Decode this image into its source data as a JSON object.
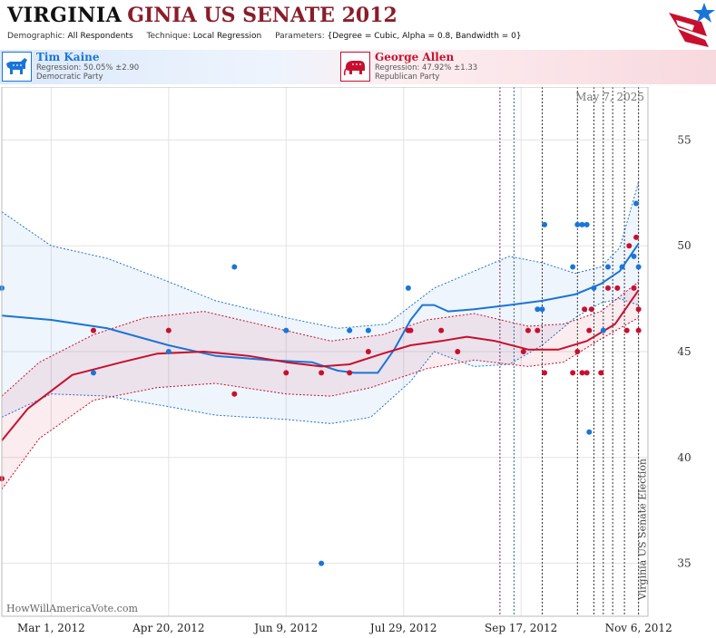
{
  "header": {
    "state": "VIRGINIA",
    "title_rest": "GINIA US SENATE 2012",
    "demographic_label": "Demographic:",
    "demographic_value": "All Respondents",
    "technique_label": "Technique:",
    "technique_value": "Local Regression",
    "parameters_label": "Parameters:",
    "parameters_value": "{Degree = Cubic, Alpha = 0.8, Bandwidth = 0}"
  },
  "candidates": [
    {
      "name": "Tim Kaine",
      "regression": "Regression: 50.05% ±2.90",
      "party": "Democratic Party",
      "color": "#1a75d8"
    },
    {
      "name": "George Allen",
      "regression": "Regression: 47.92% ±1.33",
      "party": "Republican Party",
      "color": "#c8102e"
    }
  ],
  "colors": {
    "dem": "#1a75d8",
    "rep": "#c8102e",
    "grid": "#e3e3e3",
    "event_line": "#7a1f6b"
  },
  "chart_data": {
    "type": "scatter",
    "date_label": "May 7, 2025",
    "election_label": "Virginia US Senate Election",
    "watermark": "HowWillAmericaVote.com",
    "x_ticks": [
      "Mar 1, 2012",
      "Apr 20, 2012",
      "Jun 9, 2012",
      "Jul 29, 2012",
      "Sep 17, 2012",
      "Nov 6, 2012"
    ],
    "x_range": [
      "2012-02-09",
      "2012-11-10"
    ],
    "y_ticks": [
      35,
      40,
      45,
      50,
      55
    ],
    "y_range": [
      32.5,
      57.5
    ],
    "grid": true,
    "event_dates": [
      "2012-09-08",
      "2012-09-14",
      "2012-09-26",
      "2012-10-11",
      "2012-10-18",
      "2012-10-22",
      "2012-10-26",
      "2012-10-31",
      "2012-11-06"
    ],
    "election_date": "2012-11-06",
    "series": [
      {
        "name": "Tim Kaine",
        "color": "#1a75d8",
        "points": [
          [
            "2012-02-09",
            48
          ],
          [
            "2012-03-19",
            44
          ],
          [
            "2012-04-20",
            45
          ],
          [
            "2012-05-18",
            49
          ],
          [
            "2012-06-09",
            46
          ],
          [
            "2012-06-24",
            35
          ],
          [
            "2012-07-06",
            46
          ],
          [
            "2012-07-14",
            46
          ],
          [
            "2012-07-31",
            48
          ],
          [
            "2012-09-24",
            47
          ],
          [
            "2012-09-26",
            47
          ],
          [
            "2012-09-27",
            51
          ],
          [
            "2012-10-09",
            49
          ],
          [
            "2012-10-11",
            51
          ],
          [
            "2012-10-13",
            51
          ],
          [
            "2012-10-15",
            51
          ],
          [
            "2012-10-16",
            41.2
          ],
          [
            "2012-10-18",
            48
          ],
          [
            "2012-10-22",
            46
          ],
          [
            "2012-10-24",
            49
          ],
          [
            "2012-10-30",
            49
          ],
          [
            "2012-11-04",
            49.5
          ],
          [
            "2012-11-06",
            49
          ],
          [
            "2012-11-05",
            52
          ]
        ],
        "fit": [
          [
            "2012-02-09",
            46.7
          ],
          [
            "2012-03-01",
            46.5
          ],
          [
            "2012-03-25",
            46.1
          ],
          [
            "2012-04-20",
            45.3
          ],
          [
            "2012-05-10",
            44.8
          ],
          [
            "2012-06-01",
            44.6
          ],
          [
            "2012-06-20",
            44.5
          ],
          [
            "2012-07-01",
            44.1
          ],
          [
            "2012-07-08",
            44.0
          ],
          [
            "2012-07-18",
            44.0
          ],
          [
            "2012-07-25",
            45.1
          ],
          [
            "2012-08-01",
            46.5
          ],
          [
            "2012-08-06",
            47.2
          ],
          [
            "2012-08-11",
            47.2
          ],
          [
            "2012-08-17",
            46.9
          ],
          [
            "2012-08-28",
            47.0
          ],
          [
            "2012-09-12",
            47.2
          ],
          [
            "2012-09-26",
            47.4
          ],
          [
            "2012-10-10",
            47.7
          ],
          [
            "2012-10-21",
            48.2
          ],
          [
            "2012-10-29",
            48.8
          ],
          [
            "2012-11-06",
            50.1
          ]
        ],
        "upper": [
          [
            "2012-02-09",
            51.6
          ],
          [
            "2012-03-01",
            50.0
          ],
          [
            "2012-03-25",
            49.4
          ],
          [
            "2012-04-20",
            48.3
          ],
          [
            "2012-05-10",
            47.4
          ],
          [
            "2012-06-09",
            46.6
          ],
          [
            "2012-07-01",
            46.1
          ],
          [
            "2012-07-22",
            46.3
          ],
          [
            "2012-08-11",
            48.0
          ],
          [
            "2012-08-28",
            48.8
          ],
          [
            "2012-09-12",
            49.5
          ],
          [
            "2012-09-26",
            49.2
          ],
          [
            "2012-10-10",
            48.7
          ],
          [
            "2012-10-21",
            49.0
          ],
          [
            "2012-10-29",
            49.9
          ],
          [
            "2012-11-06",
            53.0
          ]
        ],
        "lower": [
          [
            "2012-02-09",
            41.9
          ],
          [
            "2012-03-01",
            43.0
          ],
          [
            "2012-03-25",
            42.9
          ],
          [
            "2012-04-20",
            42.4
          ],
          [
            "2012-05-10",
            42.0
          ],
          [
            "2012-06-09",
            41.8
          ],
          [
            "2012-06-28",
            41.6
          ],
          [
            "2012-07-15",
            41.9
          ],
          [
            "2012-08-01",
            43.6
          ],
          [
            "2012-08-11",
            45.0
          ],
          [
            "2012-08-28",
            44.3
          ],
          [
            "2012-09-12",
            44.4
          ],
          [
            "2012-09-26",
            45.3
          ],
          [
            "2012-10-10",
            46.6
          ],
          [
            "2012-10-21",
            47.3
          ],
          [
            "2012-10-29",
            47.5
          ],
          [
            "2012-11-06",
            47.2
          ]
        ]
      },
      {
        "name": "George Allen",
        "color": "#c8102e",
        "points": [
          [
            "2012-02-09",
            39
          ],
          [
            "2012-03-19",
            46
          ],
          [
            "2012-04-20",
            46
          ],
          [
            "2012-05-18",
            43
          ],
          [
            "2012-06-09",
            44
          ],
          [
            "2012-06-24",
            44
          ],
          [
            "2012-07-06",
            44
          ],
          [
            "2012-07-14",
            45
          ],
          [
            "2012-07-31",
            46
          ],
          [
            "2012-08-01",
            46
          ],
          [
            "2012-08-14",
            46
          ],
          [
            "2012-08-21",
            45
          ],
          [
            "2012-09-18",
            45
          ],
          [
            "2012-09-20",
            46
          ],
          [
            "2012-09-24",
            46
          ],
          [
            "2012-09-27",
            44
          ],
          [
            "2012-10-09",
            44
          ],
          [
            "2012-10-11",
            45
          ],
          [
            "2012-10-13",
            44
          ],
          [
            "2012-10-14",
            47
          ],
          [
            "2012-10-15",
            44
          ],
          [
            "2012-10-16",
            46
          ],
          [
            "2012-10-17",
            47
          ],
          [
            "2012-10-21",
            44
          ],
          [
            "2012-10-24",
            48
          ],
          [
            "2012-10-28",
            48
          ],
          [
            "2012-11-01",
            46
          ],
          [
            "2012-11-02",
            50
          ],
          [
            "2012-11-04",
            48
          ],
          [
            "2012-11-05",
            50.4
          ],
          [
            "2012-11-06",
            47
          ],
          [
            "2012-11-06",
            46
          ]
        ],
        "fit": [
          [
            "2012-02-09",
            40.8
          ],
          [
            "2012-02-20",
            42.3
          ],
          [
            "2012-03-10",
            43.9
          ],
          [
            "2012-03-31",
            44.5
          ],
          [
            "2012-04-15",
            44.9
          ],
          [
            "2012-05-05",
            45.0
          ],
          [
            "2012-05-24",
            44.8
          ],
          [
            "2012-06-09",
            44.5
          ],
          [
            "2012-06-24",
            44.3
          ],
          [
            "2012-07-06",
            44.4
          ],
          [
            "2012-07-20",
            44.9
          ],
          [
            "2012-08-01",
            45.3
          ],
          [
            "2012-08-14",
            45.5
          ],
          [
            "2012-08-25",
            45.7
          ],
          [
            "2012-09-06",
            45.5
          ],
          [
            "2012-09-20",
            45.1
          ],
          [
            "2012-10-03",
            45.1
          ],
          [
            "2012-10-15",
            45.5
          ],
          [
            "2012-10-27",
            46.3
          ],
          [
            "2012-11-06",
            47.9
          ]
        ],
        "upper": [
          [
            "2012-02-09",
            42.9
          ],
          [
            "2012-02-25",
            44.5
          ],
          [
            "2012-03-19",
            45.8
          ],
          [
            "2012-04-10",
            46.6
          ],
          [
            "2012-05-05",
            46.9
          ],
          [
            "2012-06-01",
            46.2
          ],
          [
            "2012-06-28",
            45.5
          ],
          [
            "2012-07-20",
            45.8
          ],
          [
            "2012-08-08",
            46.5
          ],
          [
            "2012-08-28",
            46.8
          ],
          [
            "2012-09-20",
            46.2
          ],
          [
            "2012-10-05",
            46.3
          ],
          [
            "2012-10-21",
            46.9
          ],
          [
            "2012-11-06",
            48.3
          ]
        ],
        "lower": [
          [
            "2012-02-09",
            38.5
          ],
          [
            "2012-02-25",
            40.9
          ],
          [
            "2012-03-19",
            42.7
          ],
          [
            "2012-04-15",
            43.3
          ],
          [
            "2012-05-10",
            43.5
          ],
          [
            "2012-06-09",
            43.0
          ],
          [
            "2012-06-28",
            42.9
          ],
          [
            "2012-07-15",
            43.3
          ],
          [
            "2012-08-08",
            44.2
          ],
          [
            "2012-08-28",
            44.6
          ],
          [
            "2012-09-20",
            44.3
          ],
          [
            "2012-10-05",
            44.5
          ],
          [
            "2012-10-21",
            45.6
          ],
          [
            "2012-11-06",
            46.6
          ]
        ]
      }
    ]
  }
}
